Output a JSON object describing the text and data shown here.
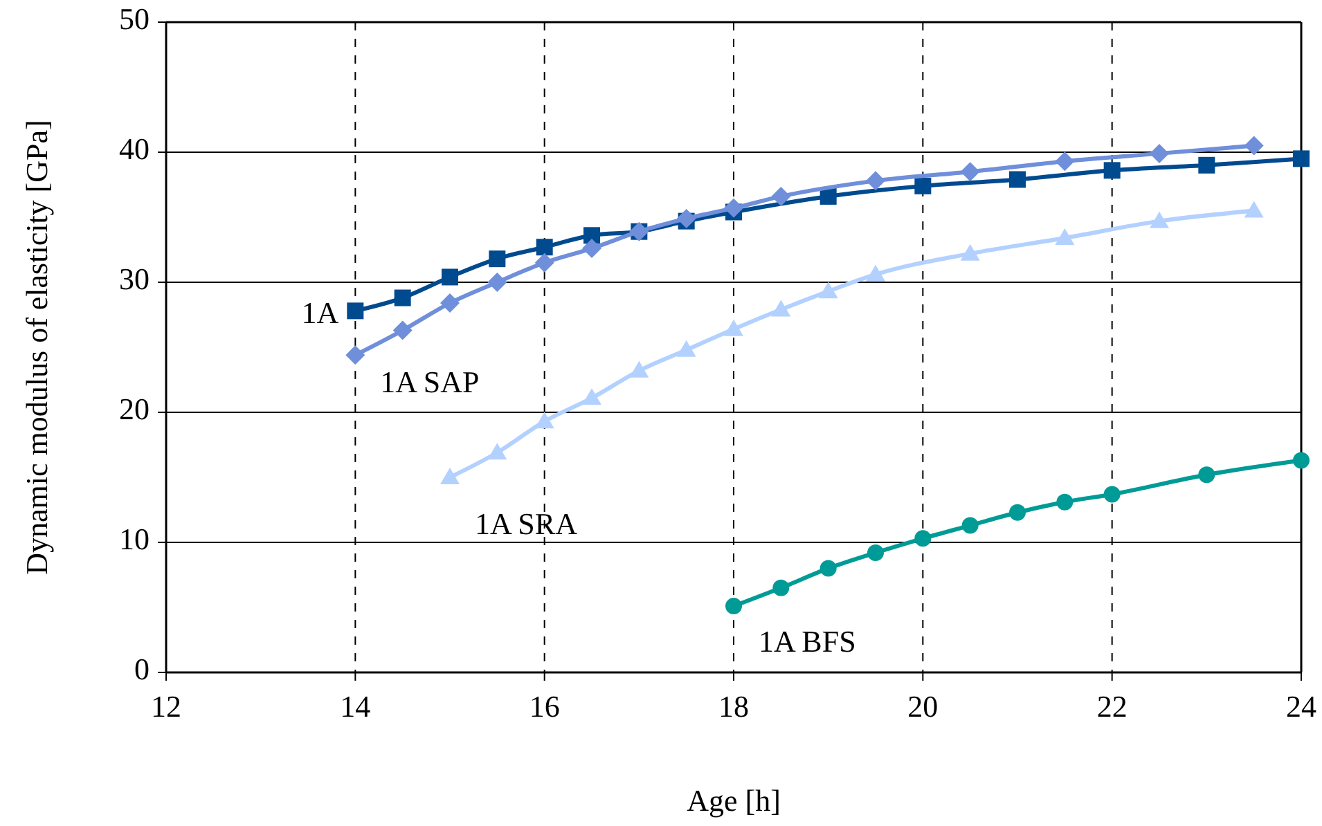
{
  "chart_data": {
    "type": "line",
    "xlabel": "Age [h]",
    "ylabel": "Dynamic modulus of elasticity [GPa]",
    "xlim": [
      12,
      24
    ],
    "xticks": [
      12,
      14,
      16,
      18,
      20,
      22,
      24
    ],
    "ylim": [
      0,
      50
    ],
    "yticks": [
      0,
      10,
      20,
      30,
      40,
      50
    ],
    "grid": true,
    "series": [
      {
        "name": "1A",
        "color": "#004a8f",
        "marker": "square",
        "x": [
          14,
          14.5,
          15,
          15.5,
          16,
          16.5,
          17,
          17.5,
          18,
          19,
          20,
          21,
          22,
          23,
          24
        ],
        "values": [
          27.8,
          28.8,
          30.4,
          31.8,
          32.7,
          33.6,
          33.9,
          34.7,
          35.4,
          36.6,
          37.4,
          37.9,
          38.6,
          39.0,
          39.5
        ]
      },
      {
        "name": "1A SAP",
        "color": "#6f8fdb",
        "marker": "diamond",
        "x": [
          14,
          14.5,
          15,
          15.5,
          16,
          16.5,
          17,
          17.5,
          18,
          18.5,
          19.5,
          20.5,
          21.5,
          22.5,
          23.5
        ],
        "values": [
          24.4,
          26.3,
          28.4,
          30.0,
          31.5,
          32.6,
          33.9,
          34.9,
          35.7,
          36.6,
          37.8,
          38.5,
          39.3,
          39.9,
          40.5
        ]
      },
      {
        "name": "1A SRA",
        "color": "#b3d1ff",
        "marker": "triangle",
        "x": [
          15,
          15.5,
          16,
          16.5,
          17,
          17.5,
          18,
          18.5,
          19,
          19.5,
          20.5,
          21.5,
          22.5,
          23.5
        ],
        "values": [
          15.0,
          16.9,
          19.3,
          21.1,
          23.2,
          24.8,
          26.4,
          27.9,
          29.3,
          30.6,
          32.2,
          33.4,
          34.7,
          35.5
        ]
      },
      {
        "name": "1A BFS",
        "color": "#009b96",
        "marker": "circle",
        "x": [
          18,
          18.5,
          19,
          19.5,
          20,
          20.5,
          21,
          21.5,
          22,
          23,
          24
        ],
        "values": [
          5.1,
          6.5,
          8.0,
          9.2,
          10.3,
          11.3,
          12.3,
          13.1,
          13.7,
          15.2,
          16.3
        ]
      }
    ]
  }
}
